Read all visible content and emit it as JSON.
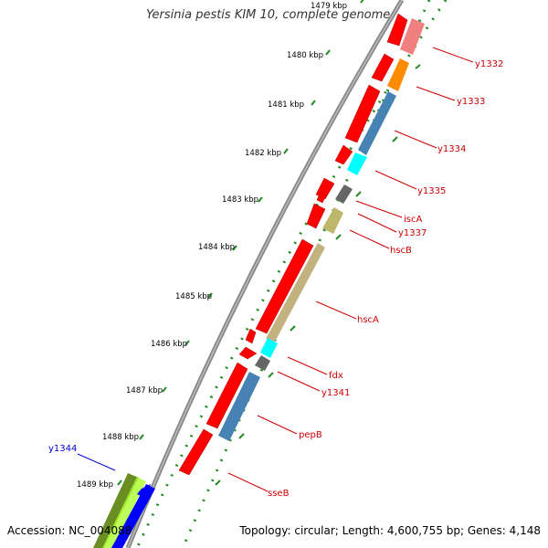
{
  "title": "Yersinia pestis KIM 10, complete genome",
  "accession": "Accession: NC_004088",
  "topology": "Topology: circular; Length: 4,600,755 bp; Genes: 4,148",
  "ticks": [
    "1479 kbp",
    "1480 kbp",
    "1481 kbp",
    "1482 kbp",
    "1483 kbp",
    "1484 kbp",
    "1485 kbp",
    "1486 kbp",
    "1487 kbp",
    "1488 kbp",
    "1489 kbp"
  ],
  "gene_labels": [
    {
      "text": "y1332",
      "color": "#cc0000"
    },
    {
      "text": "y1333",
      "color": "#cc0000"
    },
    {
      "text": "y1334",
      "color": "#cc0000"
    },
    {
      "text": "y1335",
      "color": "#cc0000"
    },
    {
      "text": "iscA",
      "color": "#cc0000"
    },
    {
      "text": "y1337",
      "color": "#cc0000"
    },
    {
      "text": "hscB",
      "color": "#cc0000"
    },
    {
      "text": "hscA",
      "color": "#cc0000"
    },
    {
      "text": "fdx",
      "color": "#cc0000"
    },
    {
      "text": "y1341",
      "color": "#cc0000"
    },
    {
      "text": "pepB",
      "color": "#cc0000"
    },
    {
      "text": "sseB",
      "color": "#cc0000"
    },
    {
      "text": "y1344",
      "color": "#0000cc"
    }
  ],
  "colors": {
    "backbone": "#888888",
    "tick_dots": "#228b22",
    "gene_red": "#ff0000",
    "label_red": "#cc0000",
    "label_blue": "#0000cc"
  }
}
